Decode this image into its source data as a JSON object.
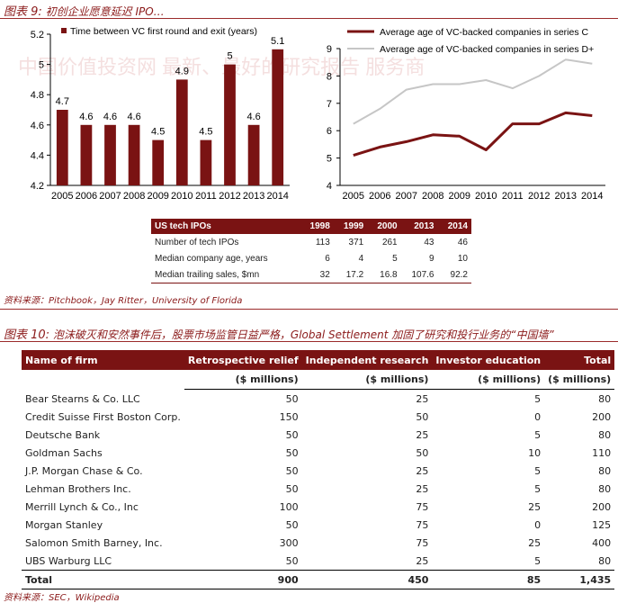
{
  "figure9": {
    "label": "图表 9:",
    "title": "初创企业愿意延迟 IPO…",
    "source": "资料来源：Pitchbook，Jay Ritter，University of Florida"
  },
  "watermark": "中国价值投资网 最新、最好的研究报告 服务商",
  "chart_data": [
    {
      "type": "bar",
      "categories": [
        "2005",
        "2006",
        "2007",
        "2008",
        "2009",
        "2010",
        "2011",
        "2012",
        "2013",
        "2014"
      ],
      "series": [
        {
          "name": "Time between VC first round and exit (years)",
          "values": [
            4.7,
            4.6,
            4.6,
            4.6,
            4.5,
            4.9,
            4.5,
            5,
            4.6,
            5.1
          ]
        }
      ],
      "value_labels": [
        "4.7",
        "4.6",
        "4.6",
        "4.6",
        "4.5",
        "4.9",
        "4.5",
        "5",
        "4.6",
        "5.1"
      ],
      "ylim": [
        4.2,
        5.2
      ],
      "yticks": [
        "4.2",
        "4.4",
        "4.6",
        "4.8",
        "5",
        "5.2"
      ],
      "grid": false,
      "legend": "top-left",
      "color": "#7a1313"
    },
    {
      "type": "line",
      "x": [
        "2005",
        "2006",
        "2007",
        "2008",
        "2009",
        "2010",
        "2011",
        "2012",
        "2013",
        "2014"
      ],
      "series": [
        {
          "name": "Average age of VC-backed companies in series C",
          "values": [
            5.1,
            5.4,
            5.6,
            5.85,
            5.8,
            5.3,
            6.25,
            6.25,
            6.65,
            6.55
          ],
          "color": "#7a1313"
        },
        {
          "name": "Average age of VC-backed companies in series D+",
          "values": [
            6.25,
            6.8,
            7.5,
            7.7,
            7.7,
            7.85,
            7.55,
            8.0,
            8.6,
            8.45
          ],
          "color": "#c6c6c6"
        }
      ],
      "ylim": [
        4,
        9
      ],
      "yticks": [
        "4",
        "5",
        "6",
        "7",
        "8",
        "9"
      ],
      "grid": false,
      "legend": "top-left"
    }
  ],
  "ipo_table": {
    "headers": [
      "US tech IPOs",
      "1998",
      "1999",
      "2000",
      "2013",
      "2014"
    ],
    "rows": [
      [
        "Number of tech IPOs",
        "113",
        "371",
        "261",
        "43",
        "46"
      ],
      [
        "Median company age, years",
        "6",
        "4",
        "5",
        "9",
        "10"
      ],
      [
        "Median trailing sales, $mn",
        "32",
        "17.2",
        "16.8",
        "107.6",
        "92.2"
      ]
    ]
  },
  "figure10": {
    "label": "图表 10:",
    "title": "泡沫破灭和安然事件后，股票市场监管日益严格，Global Settlement 加固了研究和投行业务的“中国墙”",
    "source": "资料来源：SEC，Wikipedia"
  },
  "settlement_table": {
    "headers": [
      "Name of firm",
      "Retrospective relief",
      "Independent research",
      "Investor education",
      "Total"
    ],
    "units": [
      "",
      "($ millions)",
      "($ millions)",
      "($ millions)",
      "($ millions)"
    ],
    "rows": [
      [
        "Bear Stearns & Co. LLC",
        "50",
        "25",
        "5",
        "80"
      ],
      [
        "Credit Suisse First Boston Corp.",
        "150",
        "50",
        "0",
        "200"
      ],
      [
        "Deutsche Bank",
        "50",
        "25",
        "5",
        "80"
      ],
      [
        "Goldman Sachs",
        "50",
        "50",
        "10",
        "110"
      ],
      [
        "J.P. Morgan Chase & Co.",
        "50",
        "25",
        "5",
        "80"
      ],
      [
        "Lehman Brothers Inc.",
        "50",
        "25",
        "5",
        "80"
      ],
      [
        "Merrill Lynch & Co., Inc",
        "100",
        "75",
        "25",
        "200"
      ],
      [
        "Morgan Stanley",
        "50",
        "75",
        "0",
        "125"
      ],
      [
        "Salomon Smith Barney, Inc.",
        "300",
        "75",
        "25",
        "400"
      ],
      [
        "UBS Warburg LLC",
        "50",
        "25",
        "5",
        "80"
      ]
    ],
    "total": [
      "Total",
      "900",
      "450",
      "85",
      "1,435"
    ]
  }
}
